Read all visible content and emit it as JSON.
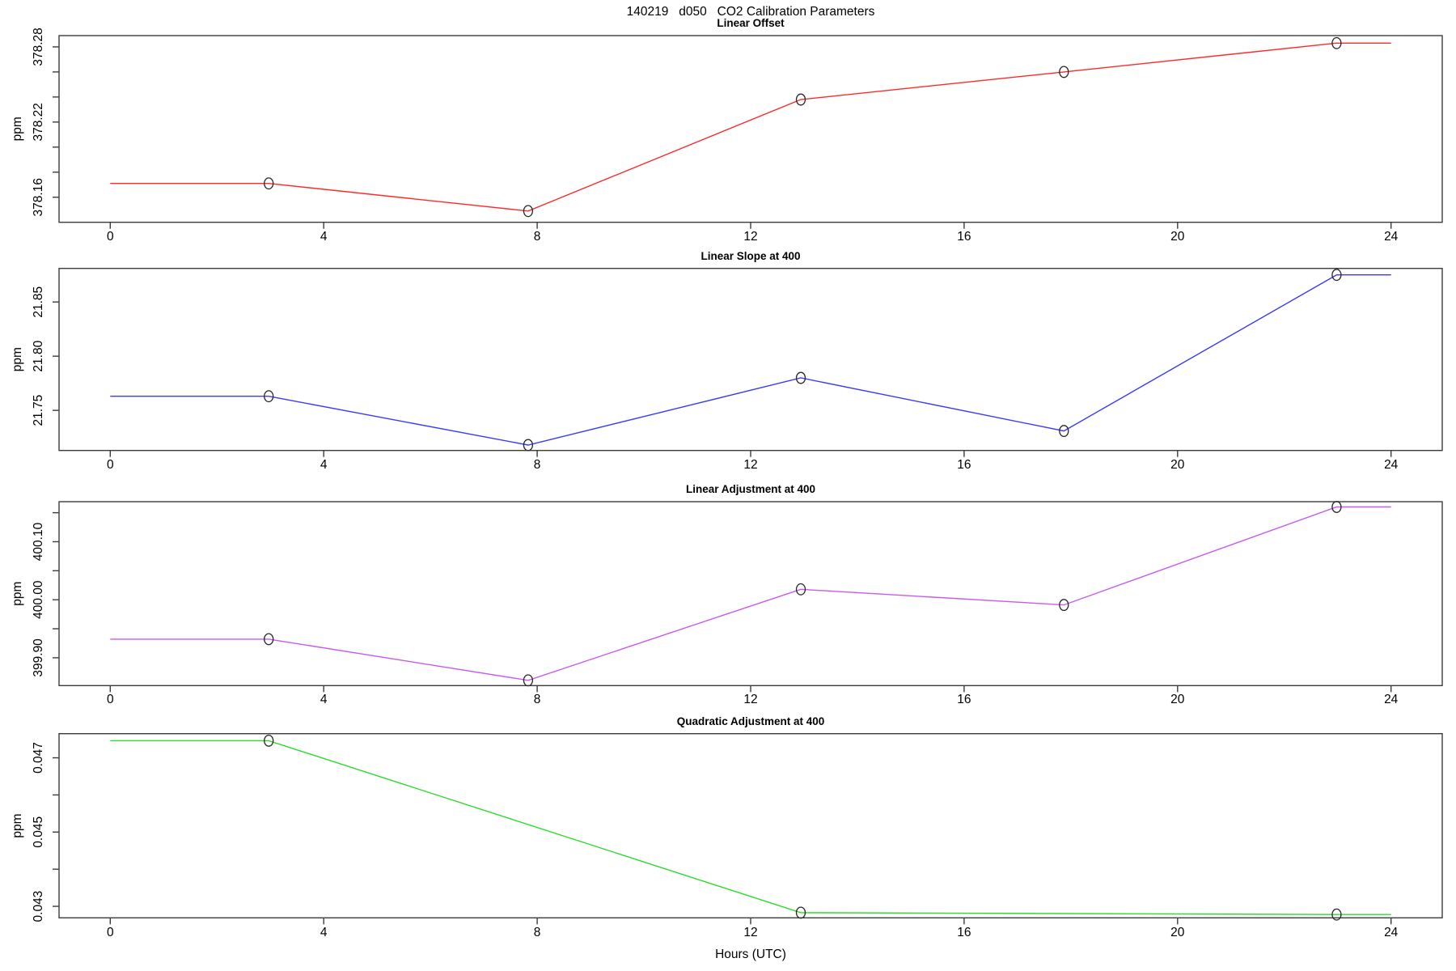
{
  "title": "140219   d050   CO2 Calibration Parameters",
  "xlabel": "Hours (UTC)",
  "xticks": [
    {
      "v": 0,
      "label": "0"
    },
    {
      "v": 4,
      "label": "4"
    },
    {
      "v": 8,
      "label": "8"
    },
    {
      "v": 12,
      "label": "12"
    },
    {
      "v": 16,
      "label": "16"
    },
    {
      "v": 20,
      "label": "20"
    },
    {
      "v": 24,
      "label": "24"
    }
  ],
  "chart_data": [
    {
      "type": "line",
      "title": "Linear Offset",
      "ylabel": "ppm",
      "color": "#ff2a2a",
      "ylim": [
        378.14,
        378.289
      ],
      "x": [
        0,
        2.97,
        7.83,
        12.94,
        17.87,
        22.98,
        24
      ],
      "values": [
        378.171,
        378.171,
        378.149,
        378.238,
        378.26,
        378.283,
        378.283
      ],
      "markers_at": [
        2.97,
        7.83,
        12.94,
        17.87,
        22.98
      ],
      "yticks": [
        {
          "v": 378.16,
          "label": "378.16"
        },
        {
          "v": 378.18,
          "label": ""
        },
        {
          "v": 378.2,
          "label": ""
        },
        {
          "v": 378.22,
          "label": "378.22"
        },
        {
          "v": 378.24,
          "label": ""
        },
        {
          "v": 378.26,
          "label": ""
        },
        {
          "v": 378.28,
          "label": "378.28"
        }
      ]
    },
    {
      "type": "line",
      "title": "Linear Slope at 400",
      "ylabel": "ppm",
      "color": "#3a3aff",
      "ylim": [
        21.713,
        21.881
      ],
      "x": [
        0,
        2.97,
        7.83,
        12.94,
        17.87,
        22.98,
        24
      ],
      "values": [
        21.763,
        21.763,
        21.718,
        21.78,
        21.731,
        21.875,
        21.875
      ],
      "markers_at": [
        2.97,
        7.83,
        12.94,
        17.87,
        22.98
      ],
      "yticks": [
        {
          "v": 21.75,
          "label": "21.75"
        },
        {
          "v": 21.8,
          "label": "21.80"
        },
        {
          "v": 21.85,
          "label": "21.85"
        }
      ]
    },
    {
      "type": "line",
      "title": "Linear Adjustment at 400",
      "ylabel": "ppm",
      "color": "#c85aef",
      "ylim": [
        399.852,
        400.169
      ],
      "x": [
        0,
        2.97,
        7.83,
        12.94,
        17.87,
        22.98,
        24
      ],
      "values": [
        399.932,
        399.932,
        399.861,
        400.018,
        399.991,
        400.16,
        400.16
      ],
      "markers_at": [
        2.97,
        7.83,
        12.94,
        17.87,
        22.98
      ],
      "yticks": [
        {
          "v": 399.9,
          "label": "399.90"
        },
        {
          "v": 399.95,
          "label": ""
        },
        {
          "v": 400.0,
          "label": "400.00"
        },
        {
          "v": 400.05,
          "label": ""
        },
        {
          "v": 400.1,
          "label": "400.10"
        },
        {
          "v": 400.15,
          "label": ""
        }
      ]
    },
    {
      "type": "line",
      "title": "Quadratic Adjustment at 400",
      "ylabel": "ppm",
      "color": "#2cdc2c",
      "ylim": [
        0.04269,
        0.04765
      ],
      "x": [
        0,
        2.97,
        12.94,
        22.98,
        24
      ],
      "values": [
        0.04746,
        0.04746,
        0.04283,
        0.04278,
        0.04278
      ],
      "markers_at": [
        2.97,
        12.94,
        22.98
      ],
      "yticks": [
        {
          "v": 0.043,
          "label": "0.043"
        },
        {
          "v": 0.044,
          "label": ""
        },
        {
          "v": 0.045,
          "label": "0.045"
        },
        {
          "v": 0.046,
          "label": ""
        },
        {
          "v": 0.047,
          "label": "0.047"
        }
      ]
    }
  ]
}
